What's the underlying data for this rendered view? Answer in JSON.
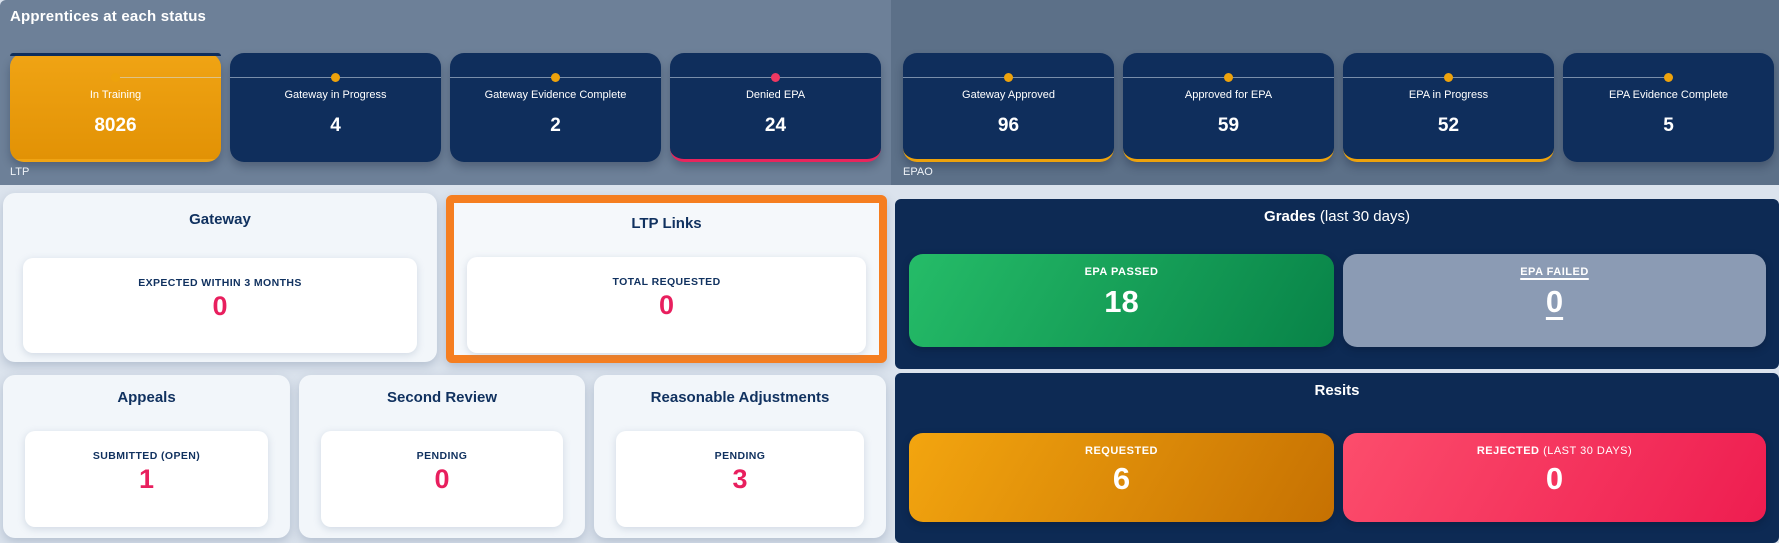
{
  "status_bar": {
    "title": "Apprentices at each status",
    "groups": [
      {
        "name": "LTP",
        "cards": [
          {
            "label": "In Training",
            "value": "8026"
          },
          {
            "label": "Gateway in Progress",
            "value": "4"
          },
          {
            "label": "Gateway Evidence Complete",
            "value": "2"
          },
          {
            "label": "Denied EPA",
            "value": "24"
          }
        ]
      },
      {
        "name": "EPAO",
        "cards": [
          {
            "label": "Gateway Approved",
            "value": "96"
          },
          {
            "label": "Approved for EPA",
            "value": "59"
          },
          {
            "label": "EPA in Progress",
            "value": "52"
          },
          {
            "label": "EPA Evidence Complete",
            "value": "5"
          }
        ]
      }
    ]
  },
  "gateway_panel": {
    "title": "Gateway",
    "stat_label": "EXPECTED WITHIN 3 MONTHS",
    "stat_value": "0"
  },
  "ltp_links_panel": {
    "title": "LTP Links",
    "stat_label": "TOTAL REQUESTED",
    "stat_value": "0"
  },
  "bottom_panels": [
    {
      "title": "Appeals",
      "stat_label": "SUBMITTED (OPEN)",
      "stat_value": "1"
    },
    {
      "title": "Second Review",
      "stat_label": "PENDING",
      "stat_value": "0"
    },
    {
      "title": "Reasonable Adjustments",
      "stat_label": "PENDING",
      "stat_value": "3"
    }
  ],
  "grades_panel": {
    "title": "Grades",
    "title_suffix": "(last 30 days)",
    "passed": {
      "label": "EPA PASSED",
      "value": "18"
    },
    "failed": {
      "label": "EPA FAILED",
      "value": "0"
    }
  },
  "resits_panel": {
    "title": "Resits",
    "requested": {
      "label": "REQUESTED",
      "value": "6"
    },
    "rejected": {
      "label": "REJECTED",
      "label_suffix": "(LAST 30 DAYS)",
      "value": "0"
    }
  },
  "colors": {
    "ltp_bar_bg": "#6d8098",
    "epao_bar_bg": "#5c7088",
    "status_card_navy": "#0f2e5c",
    "active_card_orange": "#eb9c0e",
    "stepper_dot_orange": "#eda20c",
    "stepper_dot_pink": "#ee3862",
    "denied_accent_pink": "#e8255d",
    "highlight_border_orange": "#f57e20",
    "stat_value_pink": "#e81f5e",
    "dark_panel_navy": "#0d2a54",
    "passed_green": "#14a256",
    "failed_gray": "#8b9bb4",
    "requested_orange": "#dd8b08",
    "rejected_pink": "#f53a5e",
    "page_bg": "#dbe3ed"
  }
}
